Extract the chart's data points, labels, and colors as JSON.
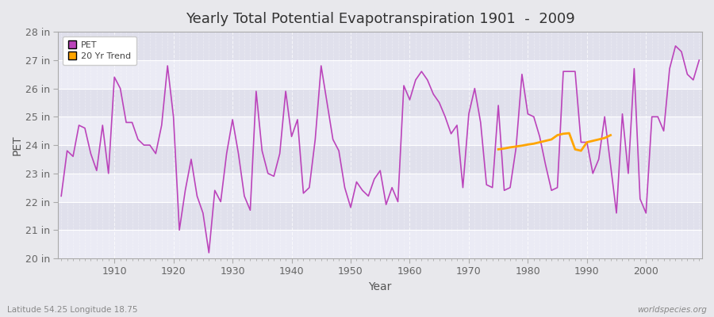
{
  "title": "Yearly Total Potential Evapotranspiration 1901  -  2009",
  "xlabel": "Year",
  "ylabel": "PET",
  "footnote_left": "Latitude 54.25 Longitude 18.75",
  "footnote_right": "worldspecies.org",
  "ylim": [
    20,
    28
  ],
  "yticks": [
    20,
    21,
    22,
    23,
    24,
    25,
    26,
    27,
    28
  ],
  "ytick_labels": [
    "20 in",
    "21 in",
    "22 in",
    "23 in",
    "24 in",
    "25 in",
    "26 in",
    "27 in",
    "28 in"
  ],
  "pet_color": "#BB44BB",
  "trend_color": "#FFA500",
  "background_color": "#E8E8EC",
  "plot_bg_color": "#F0F0F5",
  "grid_color": "#DDDDEE",
  "band_color_light": "#EBEBF5",
  "band_color_dark": "#E0E0EC",
  "xlim_left": 1900.5,
  "xlim_right": 2009.5,
  "pet_data": {
    "1901": 22.2,
    "1902": 23.8,
    "1903": 23.6,
    "1904": 24.7,
    "1905": 24.6,
    "1906": 23.7,
    "1907": 23.1,
    "1908": 24.7,
    "1909": 23.0,
    "1910": 26.4,
    "1911": 26.0,
    "1912": 24.8,
    "1913": 24.8,
    "1914": 24.2,
    "1915": 24.0,
    "1916": 24.0,
    "1917": 23.7,
    "1918": 24.7,
    "1919": 26.8,
    "1920": 25.0,
    "1921": 21.0,
    "1922": 22.4,
    "1923": 23.5,
    "1924": 22.2,
    "1925": 21.6,
    "1926": 20.2,
    "1927": 22.4,
    "1928": 22.0,
    "1929": 23.7,
    "1930": 24.9,
    "1931": 23.7,
    "1932": 22.2,
    "1933": 21.7,
    "1934": 25.9,
    "1935": 23.8,
    "1936": 23.0,
    "1937": 22.9,
    "1938": 23.7,
    "1939": 25.9,
    "1940": 24.3,
    "1941": 24.9,
    "1942": 22.3,
    "1943": 22.5,
    "1944": 24.2,
    "1945": 26.8,
    "1946": 25.5,
    "1947": 24.2,
    "1948": 23.8,
    "1949": 22.5,
    "1950": 21.8,
    "1951": 22.7,
    "1952": 22.4,
    "1953": 22.2,
    "1954": 22.8,
    "1955": 23.1,
    "1956": 21.9,
    "1957": 22.5,
    "1958": 22.0,
    "1959": 26.1,
    "1960": 25.6,
    "1961": 26.3,
    "1962": 26.6,
    "1963": 26.3,
    "1964": 25.8,
    "1965": 25.5,
    "1966": 25.0,
    "1967": 24.4,
    "1968": 24.7,
    "1969": 22.5,
    "1970": 25.1,
    "1971": 26.0,
    "1972": 24.8,
    "1973": 22.6,
    "1974": 22.5,
    "1975": 25.4,
    "1976": 22.4,
    "1977": 22.5,
    "1978": 23.9,
    "1979": 26.5,
    "1980": 25.1,
    "1981": 25.0,
    "1982": 24.3,
    "1983": 23.3,
    "1984": 22.4,
    "1985": 22.5,
    "1986": 26.6,
    "1987": 26.6,
    "1988": 26.6,
    "1989": 24.1,
    "1990": 24.1,
    "1991": 23.0,
    "1992": 23.5,
    "1993": 25.0,
    "1994": 23.3,
    "1995": 21.6,
    "1996": 25.1,
    "1997": 23.0,
    "1998": 26.7,
    "1999": 22.1,
    "2000": 21.6,
    "2001": 25.0,
    "2002": 25.0,
    "2003": 24.5,
    "2004": 26.7,
    "2005": 27.5,
    "2006": 27.3,
    "2007": 26.5,
    "2008": 26.3,
    "2009": 27.0
  },
  "trend_data": {
    "1975": 23.85,
    "1976": 23.88,
    "1977": 23.92,
    "1978": 23.95,
    "1979": 23.98,
    "1980": 24.02,
    "1981": 24.05,
    "1982": 24.1,
    "1983": 24.15,
    "1984": 24.2,
    "1985": 24.35,
    "1986": 24.4,
    "1987": 24.42,
    "1988": 23.85,
    "1989": 23.8,
    "1990": 24.1,
    "1991": 24.15,
    "1992": 24.2,
    "1993": 24.25,
    "1994": 24.35
  }
}
